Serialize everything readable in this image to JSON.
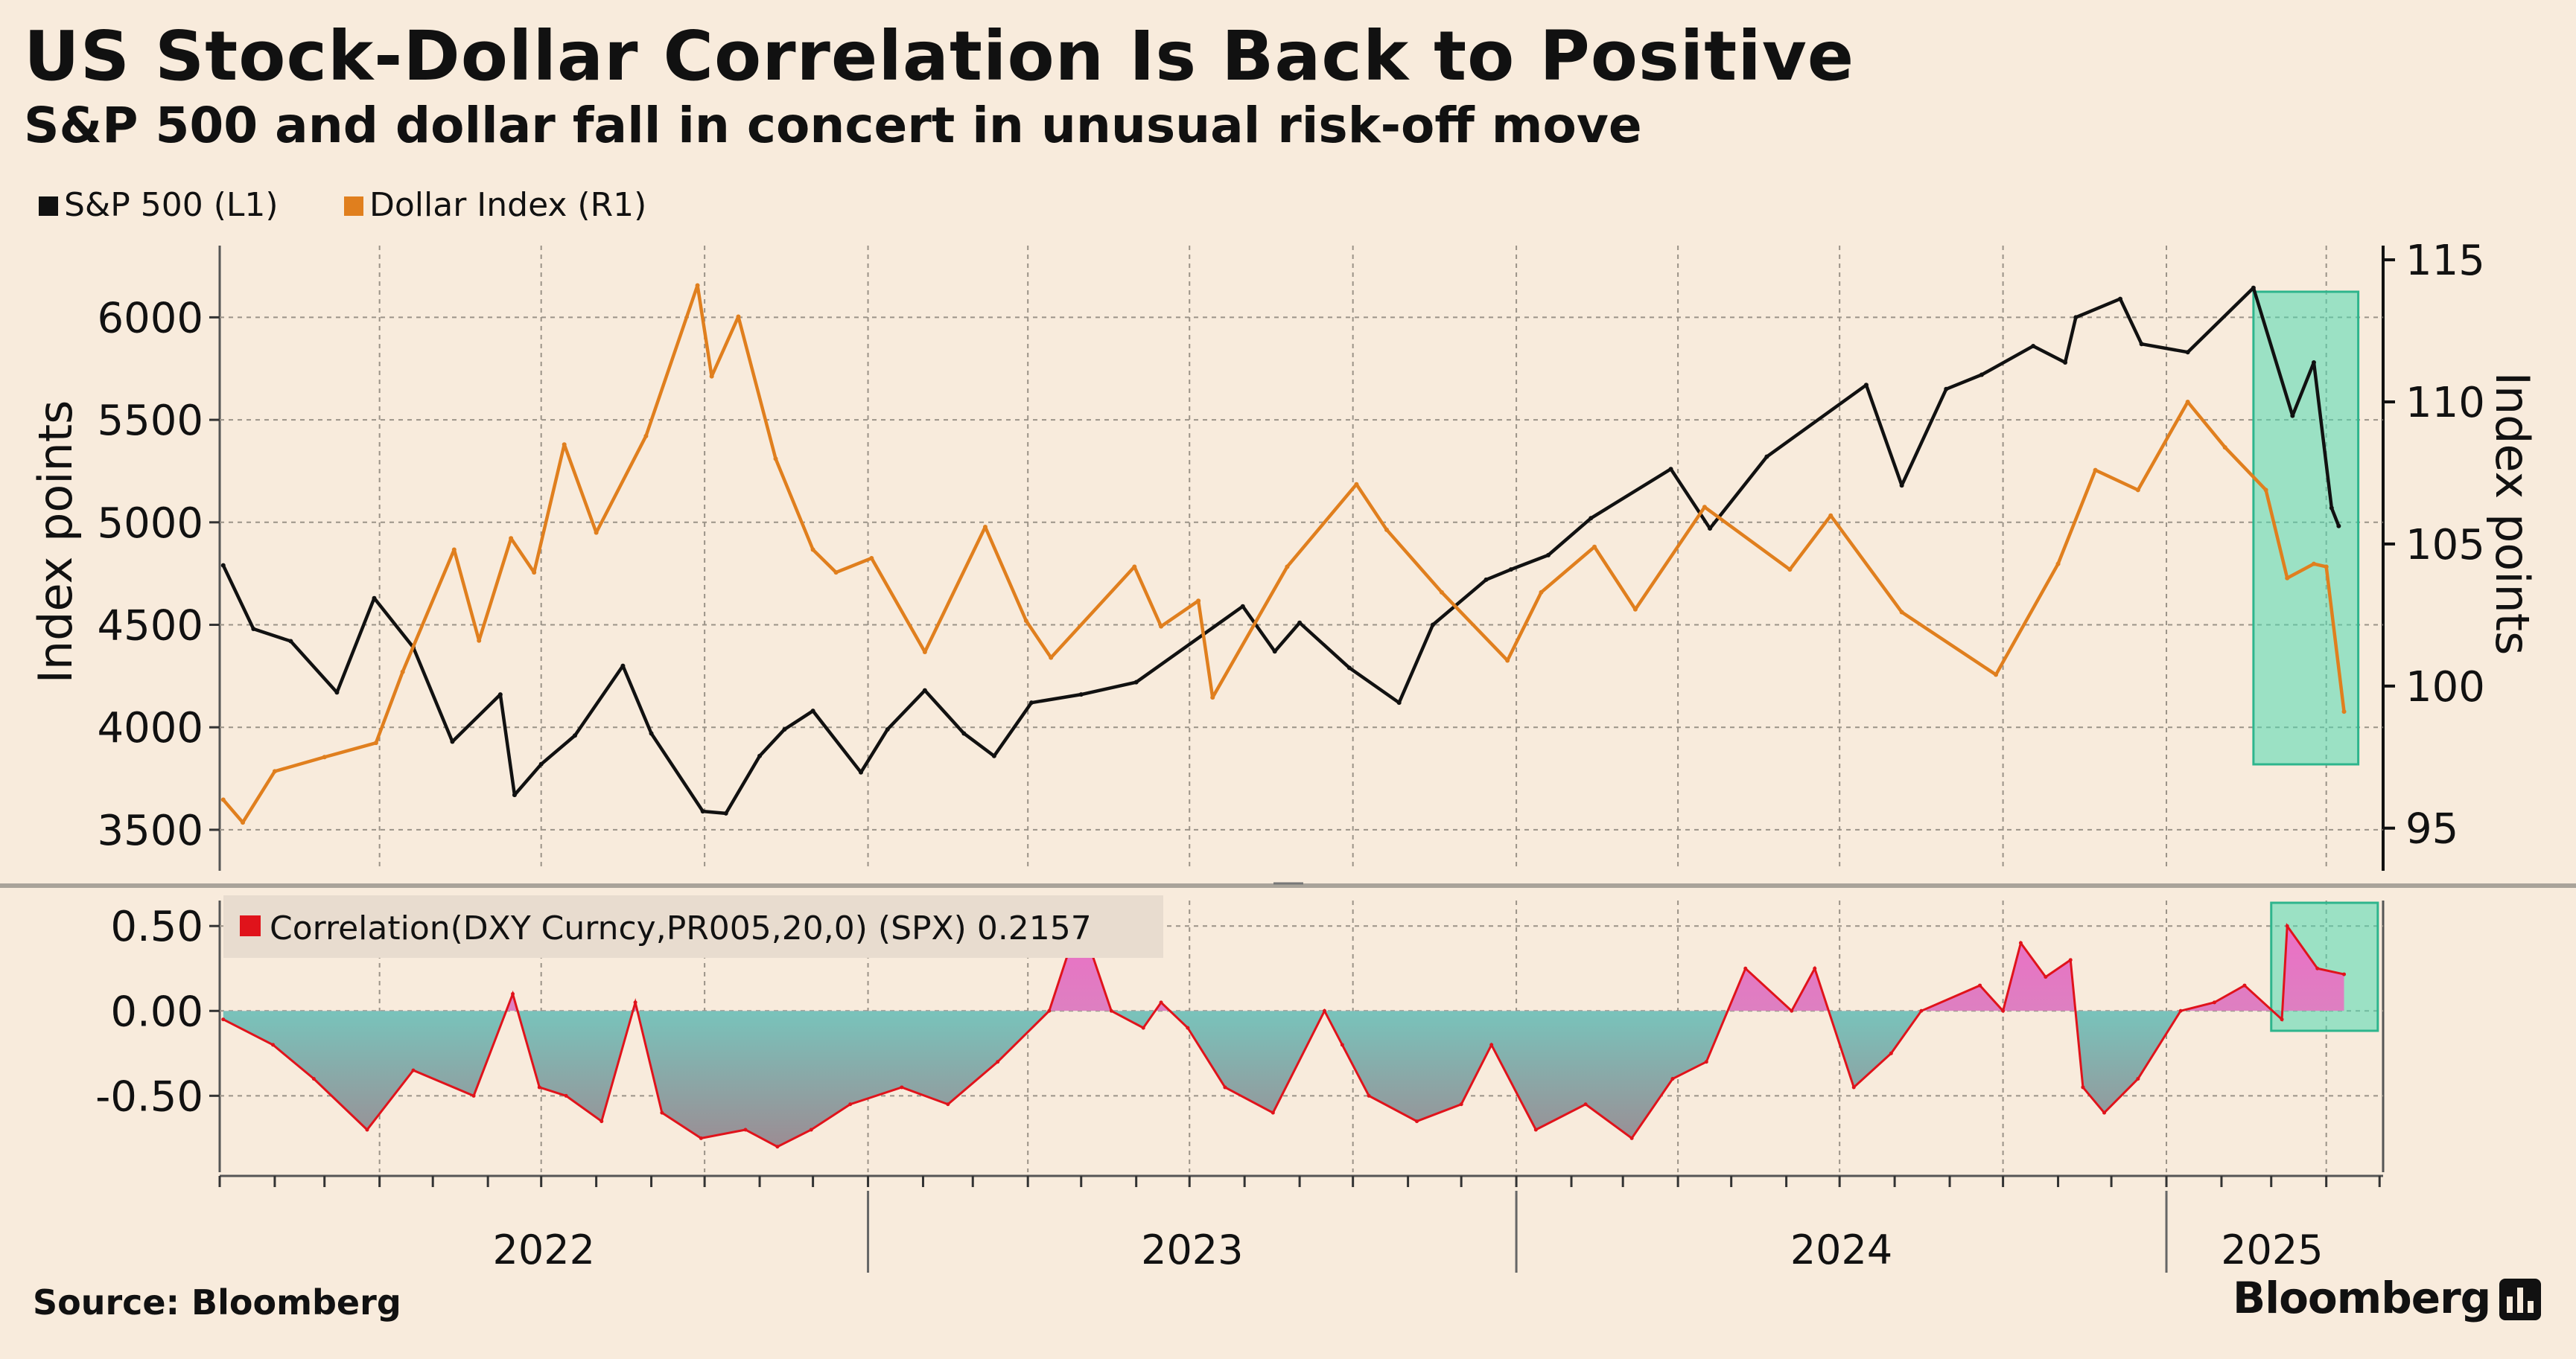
{
  "header": {
    "title": "US Stock-Dollar Correlation Is Back to Positive",
    "subtitle": "S&P 500 and dollar fall in concert in unusual risk-off move"
  },
  "footer": {
    "source": "Source: Bloomberg",
    "brand": "Bloomberg"
  },
  "colors": {
    "background": "#f8ebdc",
    "spx": "#111111",
    "dxy": "#e07f1e",
    "corr_line": "#e0131b",
    "corr_positive_fill": "#ec6fc6",
    "corr_negative_fill": "#62e6d4",
    "highlight": "#4fd8b0"
  },
  "chart_data": [
    {
      "type": "line",
      "legend": [
        "S&P 500 (L1)",
        "Dollar Index (R1)"
      ],
      "legend_position": "top-left",
      "x_ticks": [
        "2022",
        "2023",
        "2024",
        "2025"
      ],
      "grid": true,
      "left_axis": {
        "label": "Index points",
        "ylim": [
          3300,
          6350
        ],
        "ticks": [
          3500,
          4000,
          4500,
          5000,
          5500,
          6000
        ]
      },
      "right_axis": {
        "label": "Index points",
        "ylim": [
          93.5,
          115.5
        ],
        "ticks": [
          95,
          100,
          105,
          110,
          115
        ]
      },
      "series": [
        {
          "name": "S&P 500 (L1)",
          "axis": "left",
          "x": [
            "2022-01-03",
            "2022-01-20",
            "2022-02-10",
            "2022-03-08",
            "2022-03-29",
            "2022-04-20",
            "2022-05-12",
            "2022-06-08",
            "2022-06-16",
            "2022-07-01",
            "2022-07-20",
            "2022-08-16",
            "2022-09-01",
            "2022-09-30",
            "2022-10-13",
            "2022-11-01",
            "2022-11-15",
            "2022-12-01",
            "2022-12-28",
            "2023-01-12",
            "2023-02-02",
            "2023-02-24",
            "2023-03-13",
            "2023-04-03",
            "2023-05-01",
            "2023-06-01",
            "2023-07-31",
            "2023-08-18",
            "2023-09-01",
            "2023-09-29",
            "2023-10-27",
            "2023-11-15",
            "2023-12-15",
            "2023-12-29",
            "2024-01-19",
            "2024-02-12",
            "2024-03-28",
            "2024-04-19",
            "2024-05-21",
            "2024-07-16",
            "2024-08-05",
            "2024-08-30",
            "2024-09-19",
            "2024-10-18",
            "2024-11-05",
            "2024-11-11",
            "2024-12-06",
            "2024-12-18",
            "2025-01-13",
            "2025-02-19",
            "2025-03-13",
            "2025-03-25",
            "2025-04-04",
            "2025-04-08"
          ],
          "values": [
            4790,
            4480,
            4420,
            4170,
            4630,
            4390,
            3930,
            4160,
            3670,
            3820,
            3960,
            4300,
            3970,
            3590,
            3580,
            3860,
            3990,
            4080,
            3780,
            3990,
            4180,
            3970,
            3860,
            4120,
            4160,
            4220,
            4590,
            4370,
            4510,
            4290,
            4120,
            4500,
            4720,
            4770,
            4840,
            5020,
            5260,
            4970,
            5320,
            5670,
            5180,
            5650,
            5720,
            5860,
            5780,
            6000,
            6090,
            5870,
            5830,
            6144,
            5520,
            5780,
            5070,
            4982
          ]
        },
        {
          "name": "Dollar Index (R1)",
          "axis": "right",
          "x": [
            "2022-01-03",
            "2022-01-14",
            "2022-02-01",
            "2022-03-01",
            "2022-03-30",
            "2022-04-14",
            "2022-05-13",
            "2022-05-27",
            "2022-06-14",
            "2022-06-27",
            "2022-07-14",
            "2022-08-01",
            "2022-08-29",
            "2022-09-27",
            "2022-10-05",
            "2022-10-20",
            "2022-11-10",
            "2022-12-01",
            "2022-12-14",
            "2023-01-03",
            "2023-02-02",
            "2023-03-08",
            "2023-03-31",
            "2023-04-14",
            "2023-05-31",
            "2023-06-15",
            "2023-07-06",
            "2023-07-14",
            "2023-08-25",
            "2023-10-03",
            "2023-10-20",
            "2023-11-20",
            "2023-12-27",
            "2024-01-15",
            "2024-02-14",
            "2024-03-08",
            "2024-04-16",
            "2024-06-03",
            "2024-06-26",
            "2024-08-05",
            "2024-09-27",
            "2024-11-01",
            "2024-11-22",
            "2024-12-16",
            "2025-01-13",
            "2025-02-03",
            "2025-02-26",
            "2025-03-10",
            "2025-03-25",
            "2025-04-01",
            "2025-04-11"
          ],
          "values": [
            96.0,
            95.2,
            97.0,
            97.5,
            98.0,
            100.5,
            104.8,
            101.6,
            105.2,
            104.0,
            108.5,
            105.4,
            108.8,
            114.1,
            110.9,
            113.0,
            108.0,
            104.8,
            104.0,
            104.5,
            101.2,
            105.6,
            102.3,
            101.0,
            104.2,
            102.1,
            103.0,
            99.6,
            104.2,
            107.1,
            105.5,
            103.3,
            100.9,
            103.3,
            104.9,
            102.7,
            106.3,
            104.1,
            106.0,
            102.6,
            100.4,
            104.3,
            107.6,
            106.9,
            110.0,
            108.4,
            106.9,
            103.8,
            104.3,
            104.2,
            99.1
          ]
        }
      ]
    },
    {
      "type": "area",
      "legend": [
        "Correlation(DXY Curncy,PR005,20,0) (SPX) 0.2157"
      ],
      "legend_position": "top-left",
      "ylim": [
        -0.95,
        0.65
      ],
      "ticks": [
        0.5,
        0.0,
        -0.5
      ],
      "tick_labels": [
        "0.50",
        "0.00",
        "-0.50"
      ],
      "grid": true,
      "series": [
        {
          "name": "Correlation(DXY Curncy,PR005,20,0) (SPX)",
          "x": [
            "2022-01-03",
            "2022-01-31",
            "2022-02-23",
            "2022-03-25",
            "2022-04-20",
            "2022-05-24",
            "2022-06-15",
            "2022-06-30",
            "2022-07-15",
            "2022-08-04",
            "2022-08-23",
            "2022-09-07",
            "2022-09-29",
            "2022-10-24",
            "2022-11-11",
            "2022-11-30",
            "2022-12-22",
            "2023-01-20",
            "2023-02-15",
            "2023-03-15",
            "2023-04-13",
            "2023-04-24",
            "2023-05-05",
            "2023-05-18",
            "2023-06-05",
            "2023-06-15",
            "2023-06-30",
            "2023-07-21",
            "2023-08-17",
            "2023-09-15",
            "2023-09-25",
            "2023-10-10",
            "2023-11-06",
            "2023-12-01",
            "2023-12-18",
            "2024-01-12",
            "2024-02-09",
            "2024-03-06",
            "2024-03-29",
            "2024-04-17",
            "2024-05-09",
            "2024-06-04",
            "2024-06-17",
            "2024-07-09",
            "2024-07-30",
            "2024-08-16",
            "2024-09-18",
            "2024-10-01",
            "2024-10-11",
            "2024-10-25",
            "2024-11-08",
            "2024-11-15",
            "2024-11-27",
            "2024-12-16",
            "2025-01-09",
            "2025-01-28",
            "2025-02-14",
            "2025-03-07",
            "2025-03-10",
            "2025-03-27",
            "2025-04-11"
          ],
          "values": [
            -0.05,
            -0.2,
            -0.4,
            -0.7,
            -0.35,
            -0.5,
            0.1,
            -0.45,
            -0.5,
            -0.65,
            0.05,
            -0.6,
            -0.75,
            -0.7,
            -0.8,
            -0.7,
            -0.55,
            -0.45,
            -0.55,
            -0.3,
            0.0,
            0.35,
            0.4,
            0.0,
            -0.1,
            0.05,
            -0.1,
            -0.45,
            -0.6,
            0.0,
            -0.2,
            -0.5,
            -0.65,
            -0.55,
            -0.2,
            -0.7,
            -0.55,
            -0.75,
            -0.4,
            -0.3,
            0.25,
            0.0,
            0.25,
            -0.45,
            -0.25,
            0.0,
            0.15,
            0.0,
            0.4,
            0.2,
            0.3,
            -0.45,
            -0.6,
            -0.4,
            0.0,
            0.05,
            0.15,
            -0.05,
            0.5,
            0.25,
            0.2157
          ]
        }
      ]
    }
  ]
}
